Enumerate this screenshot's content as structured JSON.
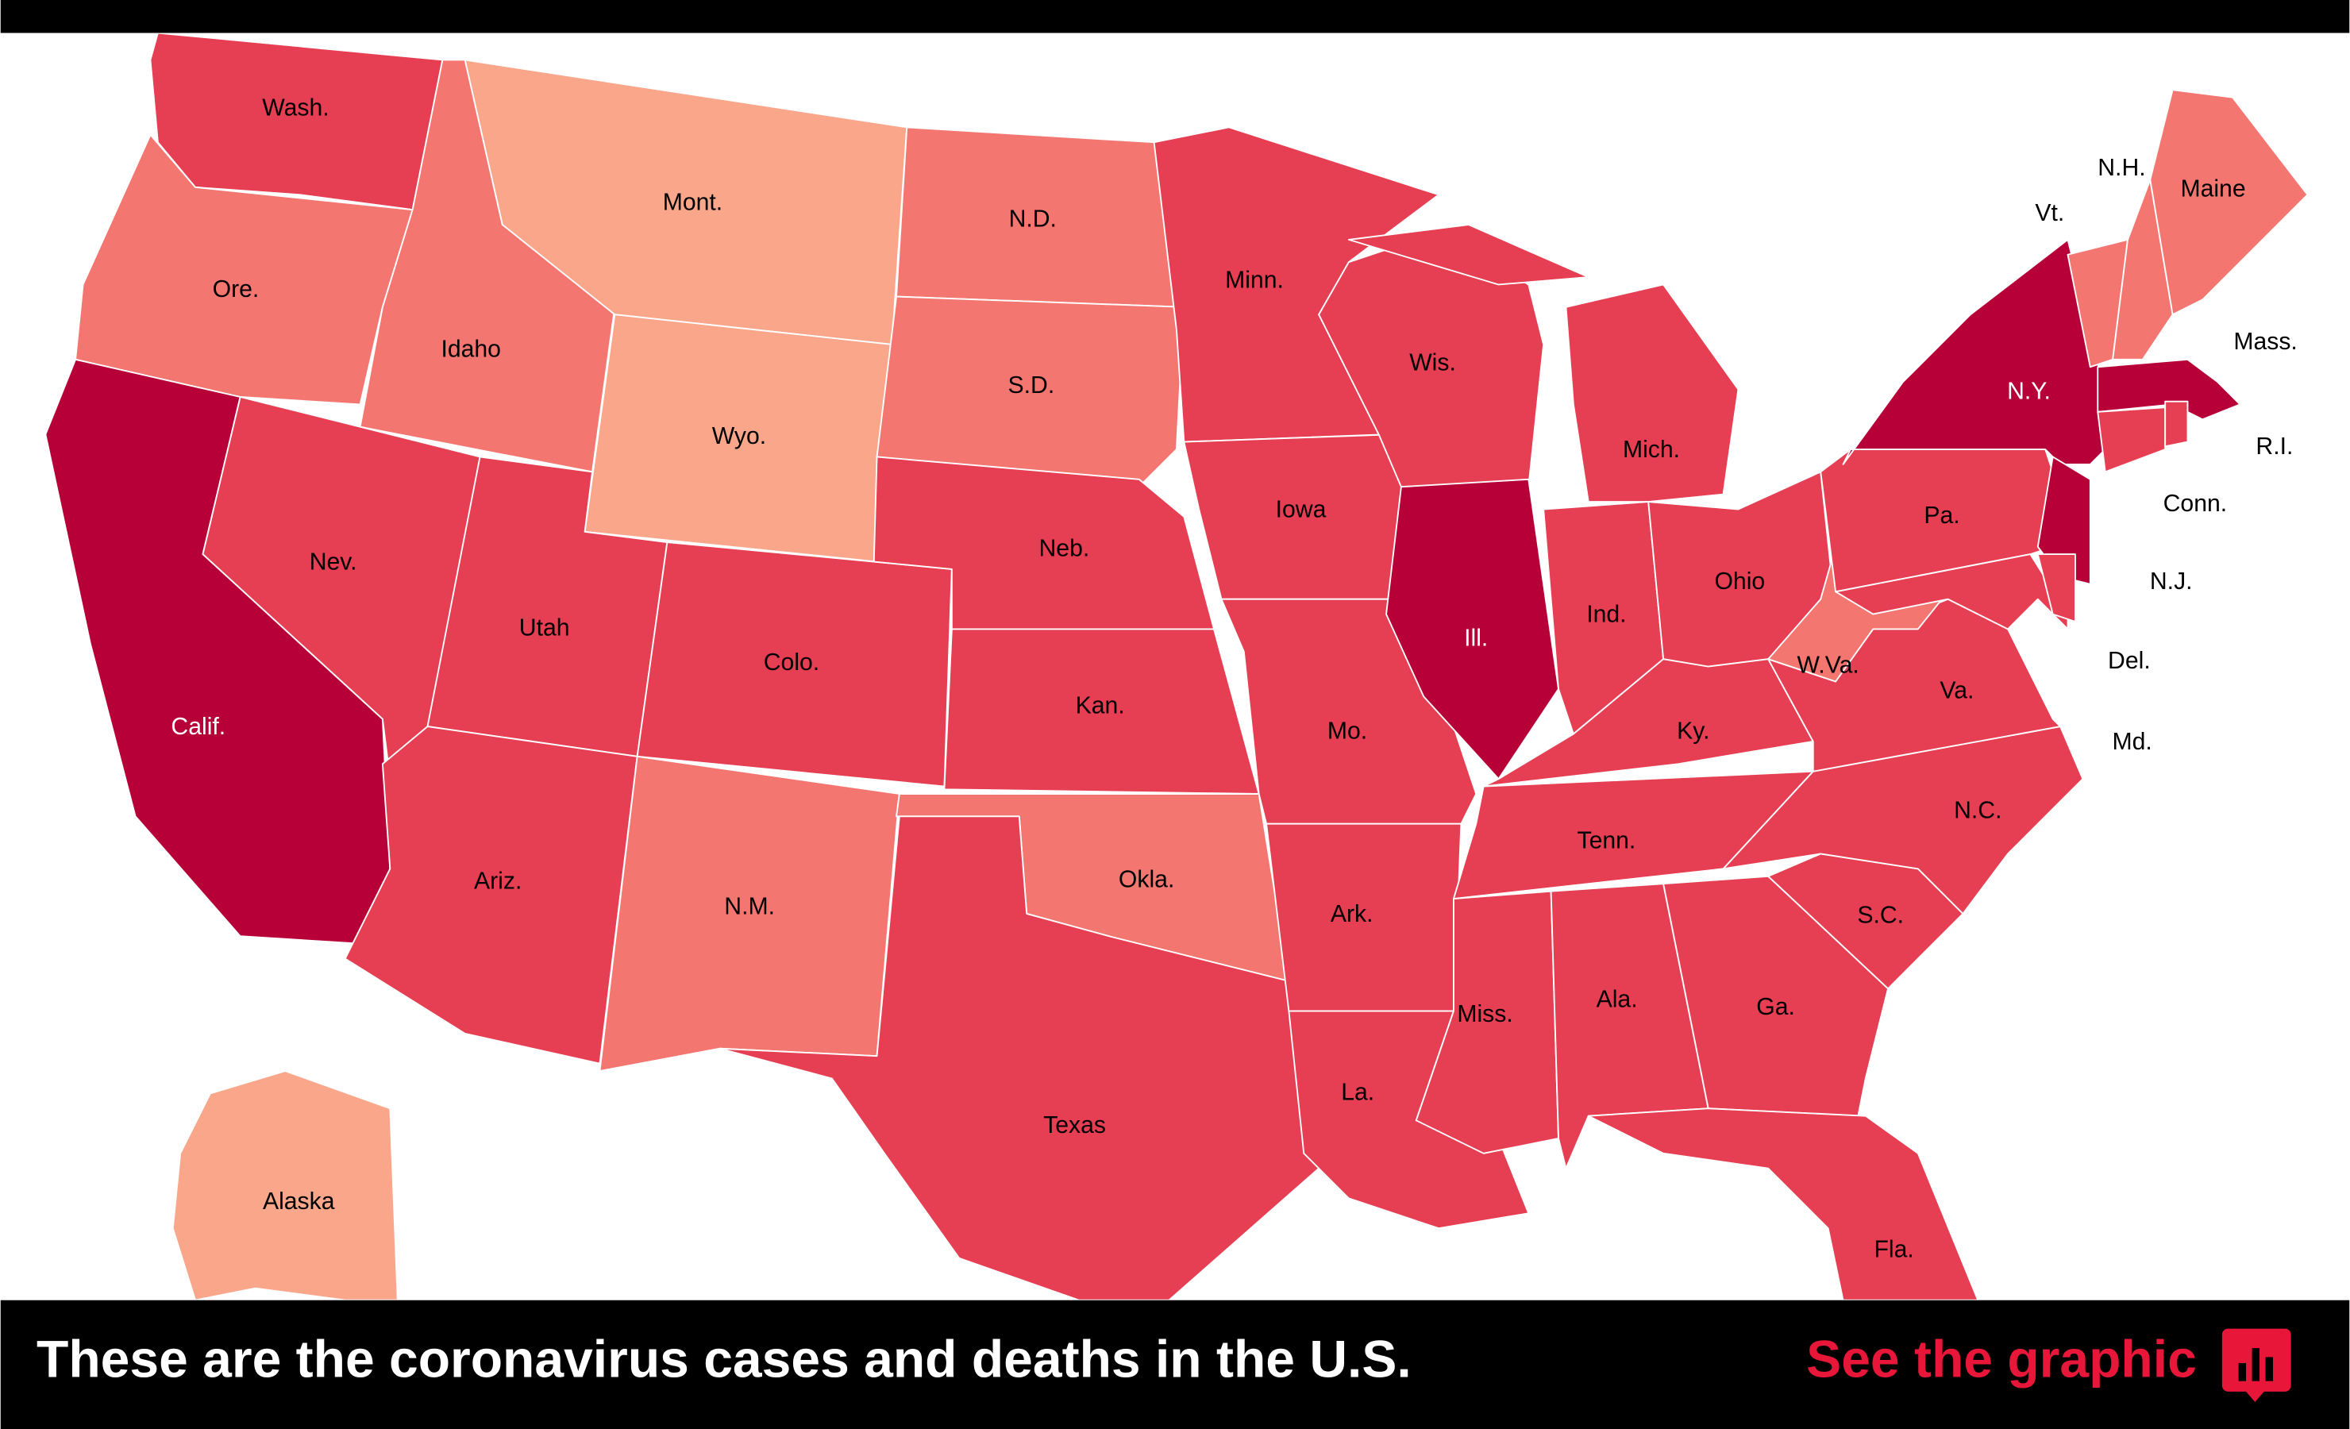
{
  "map": {
    "states": [
      {
        "label": "Wash.",
        "fill": "#e63e52"
      },
      {
        "label": "Ore.",
        "fill": "#f47670"
      },
      {
        "label": "Calif.",
        "fill": "#b80038"
      },
      {
        "label": "Idaho",
        "fill": "#f47670"
      },
      {
        "label": "Nev.",
        "fill": "#e63e52"
      },
      {
        "label": "Mont.",
        "fill": "#f9a68a"
      },
      {
        "label": "Wyo.",
        "fill": "#f9a68a"
      },
      {
        "label": "Utah",
        "fill": "#e63e52"
      },
      {
        "label": "Ariz.",
        "fill": "#e63e52"
      },
      {
        "label": "Colo.",
        "fill": "#e63e52"
      },
      {
        "label": "N.M.",
        "fill": "#f47670"
      },
      {
        "label": "N.D.",
        "fill": "#f47670"
      },
      {
        "label": "S.D.",
        "fill": "#f47670"
      },
      {
        "label": "Neb.",
        "fill": "#e63e52"
      },
      {
        "label": "Kan.",
        "fill": "#e63e52"
      },
      {
        "label": "Okla.",
        "fill": "#f47670"
      },
      {
        "label": "Texas",
        "fill": "#e63e52"
      },
      {
        "label": "Minn.",
        "fill": "#e63e52"
      },
      {
        "label": "Iowa",
        "fill": "#e63e52"
      },
      {
        "label": "Mo.",
        "fill": "#e63e52"
      },
      {
        "label": "Ark.",
        "fill": "#e63e52"
      },
      {
        "label": "La.",
        "fill": "#e63e52"
      },
      {
        "label": "Wis.",
        "fill": "#e63e52"
      },
      {
        "label": "Ill.",
        "fill": "#b80038"
      },
      {
        "label": "Mich.",
        "fill": "#e63e52"
      },
      {
        "label": "Ind.",
        "fill": "#e63e52"
      },
      {
        "label": "Ohio",
        "fill": "#e63e52"
      },
      {
        "label": "Ky.",
        "fill": "#e63e52"
      },
      {
        "label": "Tenn.",
        "fill": "#e63e52"
      },
      {
        "label": "Miss.",
        "fill": "#e63e52"
      },
      {
        "label": "Ala.",
        "fill": "#e63e52"
      },
      {
        "label": "Ga.",
        "fill": "#e63e52"
      },
      {
        "label": "Fla.",
        "fill": "#e63e52"
      },
      {
        "label": "S.C.",
        "fill": "#e63e52"
      },
      {
        "label": "N.C.",
        "fill": "#e63e52"
      },
      {
        "label": "Va.",
        "fill": "#e63e52"
      },
      {
        "label": "W.Va.",
        "fill": "#f47670"
      },
      {
        "label": "Pa.",
        "fill": "#e63e52"
      },
      {
        "label": "N.Y.",
        "fill": "#b80038"
      },
      {
        "label": "N.J.",
        "fill": "#b80038"
      },
      {
        "label": "Md.",
        "fill": "#e63e52"
      },
      {
        "label": "Del.",
        "fill": "#e63e52"
      },
      {
        "label": "Vt.",
        "fill": "#f47670"
      },
      {
        "label": "N.H.",
        "fill": "#f47670"
      },
      {
        "label": "Maine",
        "fill": "#f47670"
      },
      {
        "label": "Mass.",
        "fill": "#b80038"
      },
      {
        "label": "Conn.",
        "fill": "#e63e52"
      },
      {
        "label": "R.I.",
        "fill": "#e63e52"
      },
      {
        "label": "Alaska",
        "fill": "#f9a68a"
      }
    ]
  },
  "footer": {
    "headline": "These are the coronavirus cases and deaths in the U.S.",
    "link": "See the graphic"
  }
}
